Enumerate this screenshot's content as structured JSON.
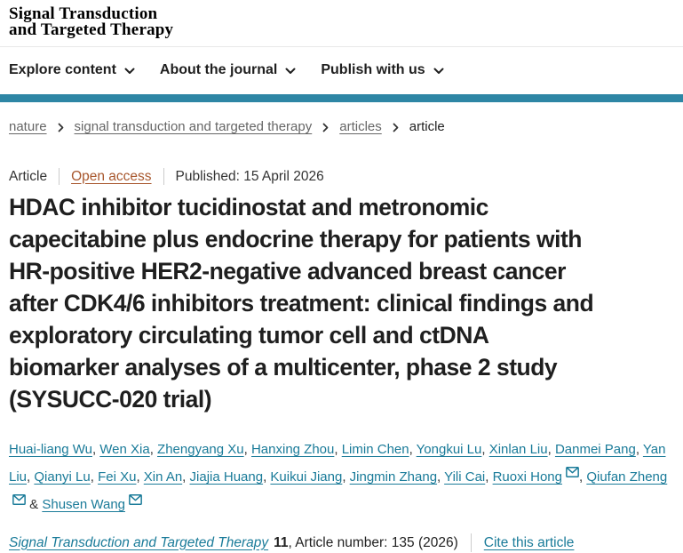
{
  "header": {
    "logo": "Signal Transduction\nand Targeted Therapy"
  },
  "nav": {
    "items": [
      {
        "label": "Explore content"
      },
      {
        "label": "About the journal"
      },
      {
        "label": "Publish with us"
      }
    ]
  },
  "breadcrumb": {
    "items": [
      {
        "label": "nature"
      },
      {
        "label": "signal transduction and targeted therapy"
      },
      {
        "label": "articles"
      },
      {
        "label": "article"
      }
    ]
  },
  "article": {
    "type_label": "Article",
    "access_label": "Open access",
    "published_text": "Published: 15 April 2026",
    "title": "HDAC inhibitor tucidinostat and metronomic\ncapecitabine plus endocrine therapy for patients with\nHR-positive HER2-negative advanced breast cancer\nafter CDK4/6 inhibitors treatment: clinical findings and\nexploratory circulating tumor cell and ctDNA\nbiomarker analyses of a multicenter, phase 2 study\n(SYSUCC-020 trial)",
    "authors": [
      {
        "name": "Huai-liang Wu",
        "email": false
      },
      {
        "name": "Wen Xia",
        "email": false
      },
      {
        "name": "Zhengyang Xu",
        "email": false
      },
      {
        "name": "Hanxing Zhou",
        "email": false
      },
      {
        "name": "Limin Chen",
        "email": false
      },
      {
        "name": "Yongkui Lu",
        "email": false
      },
      {
        "name": "Xinlan Liu",
        "email": false
      },
      {
        "name": "Danmei Pang",
        "email": false
      },
      {
        "name": "Yan Liu",
        "email": false
      },
      {
        "name": "Qianyi Lu",
        "email": false
      },
      {
        "name": "Fei Xu",
        "email": false
      },
      {
        "name": "Xin An",
        "email": false
      },
      {
        "name": "Jiajia Huang",
        "email": false
      },
      {
        "name": "Kuikui Jiang",
        "email": false
      },
      {
        "name": "Jingmin Zhang",
        "email": false
      },
      {
        "name": "Yili Cai",
        "email": false
      },
      {
        "name": "Ruoxi Hong",
        "email": true
      },
      {
        "name": "Qiufan Zheng",
        "email": true
      },
      {
        "name": "Shusen Wang",
        "email": true
      }
    ]
  },
  "journal_ref": {
    "journal_name": "Signal Transduction and Targeted Therapy",
    "volume": "11",
    "article_number_text": ", Article number: 135 (2026)",
    "cite_label": "Cite this article"
  },
  "colors": {
    "accent_bar": "#2e86a5",
    "link_teal": "#1a7b99",
    "open_access_link": "#a8572d",
    "breadcrumb_link": "#666666"
  }
}
